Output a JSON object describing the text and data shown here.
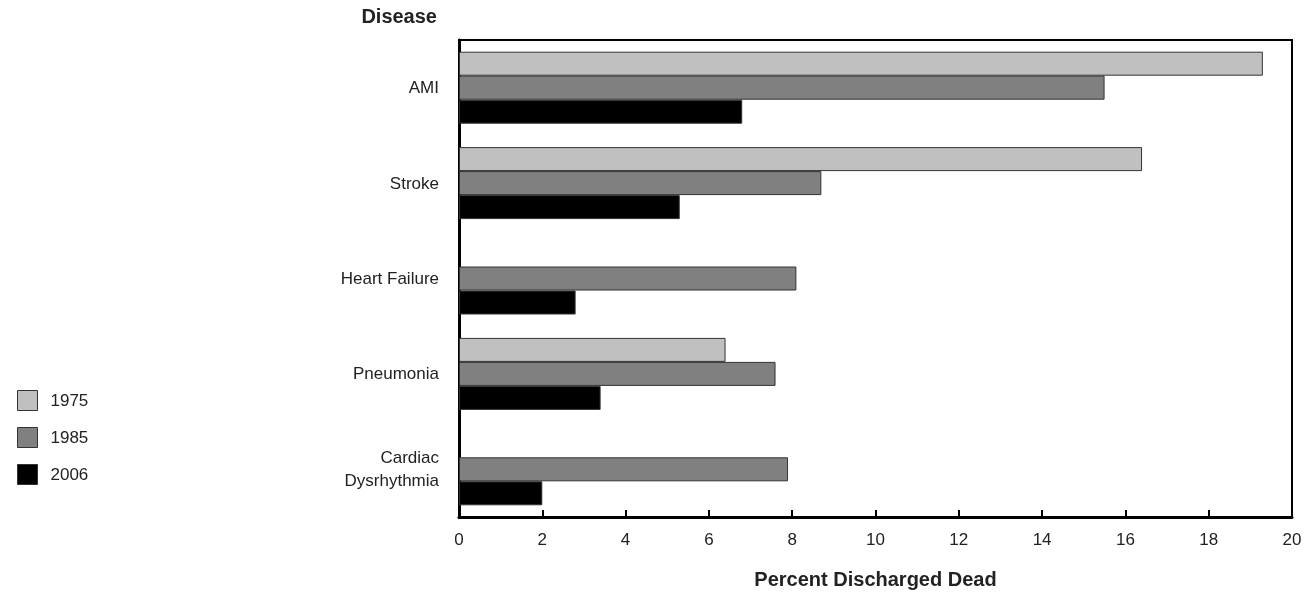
{
  "chart_data": {
    "type": "bar",
    "orientation": "horizontal",
    "ylabel": "Disease",
    "xlabel": "Percent Discharged Dead",
    "categories": [
      "AMI",
      "Stroke",
      "Heart Failure",
      "Pneumonia",
      "Cardiac\nDysrhythmia"
    ],
    "series": [
      {
        "name": "1975",
        "color": "#c0c0c0",
        "values": [
          19.3,
          16.4,
          null,
          6.4,
          null
        ]
      },
      {
        "name": "1985",
        "color": "#808080",
        "values": [
          15.5,
          8.7,
          8.1,
          7.6,
          7.9
        ]
      },
      {
        "name": "2006",
        "color": "#000000",
        "values": [
          6.8,
          5.3,
          2.8,
          3.4,
          2.0
        ]
      }
    ],
    "xlim": [
      0,
      20
    ],
    "xticks": [
      0,
      2,
      4,
      6,
      8,
      10,
      12,
      14,
      16,
      18,
      20
    ],
    "grid": false,
    "legend": "left"
  }
}
